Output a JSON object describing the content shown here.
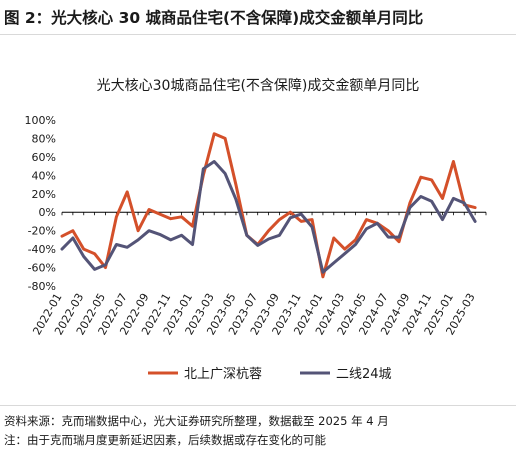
{
  "figure_title": "图 2：光大核心 30 城商品住宅(不含保障)成交金额单月同比",
  "footer": {
    "source": "资料来源：克而瑞数据中心，光大证券研究所整理，数据截至 2025 年 4 月",
    "note": "注：由于克而瑞月度更新延迟因素，后续数据或存在变化的可能"
  },
  "colors": {
    "series1": "#d4502a",
    "series2": "#545477",
    "zero_axis": "#000000"
  },
  "chart_data": {
    "type": "line",
    "title": "光大核心30城商品住宅(不含保障)成交金额单月同比",
    "xlabel": "",
    "ylabel": "",
    "ylim": [
      -80,
      100
    ],
    "y_ticks": [
      100,
      80,
      60,
      40,
      20,
      0,
      -20,
      -40,
      -60,
      -80
    ],
    "y_tick_labels": [
      "100%",
      "80%",
      "60%",
      "40%",
      "20%",
      "0%",
      "-20%",
      "-40%",
      "-60%",
      "-80%"
    ],
    "grid": false,
    "legend_position": "bottom",
    "x_tick_labels": [
      "2022-01",
      "2022-03",
      "2022-05",
      "2022-07",
      "2022-09",
      "2022-11",
      "2023-01",
      "2023-03",
      "2023-05",
      "2023-07",
      "2023-09",
      "2023-11",
      "2024-01",
      "2024-03",
      "2024-05",
      "2024-07",
      "2024-09",
      "2024-11",
      "2025-01",
      "2025-03"
    ],
    "x": [
      "2022-01",
      "2022-02",
      "2022-03",
      "2022-04",
      "2022-05",
      "2022-06",
      "2022-07",
      "2022-08",
      "2022-09",
      "2022-10",
      "2022-11",
      "2022-12",
      "2023-01",
      "2023-02",
      "2023-03",
      "2023-04",
      "2023-05",
      "2023-06",
      "2023-07",
      "2023-08",
      "2023-09",
      "2023-10",
      "2023-11",
      "2023-12",
      "2024-01",
      "2024-02",
      "2024-03",
      "2024-04",
      "2024-05",
      "2024-06",
      "2024-07",
      "2024-08",
      "2024-09",
      "2024-10",
      "2024-11",
      "2024-12",
      "2025-01",
      "2025-02",
      "2025-03",
      "2025-04"
    ],
    "series": [
      {
        "name": "北上广深杭蓉",
        "values": [
          -26,
          -20,
          -40,
          -45,
          -60,
          -5,
          22,
          -20,
          3,
          -2,
          -7,
          -5,
          -15,
          40,
          85,
          80,
          30,
          -25,
          -35,
          -20,
          -8,
          0,
          -10,
          -8,
          -70,
          -28,
          -40,
          -30,
          -8,
          -12,
          -20,
          -32,
          10,
          38,
          35,
          15,
          55,
          8,
          5,
          null
        ]
      },
      {
        "name": "二线24城",
        "values": [
          -40,
          -28,
          -48,
          -62,
          -57,
          -35,
          -38,
          -30,
          -20,
          -24,
          -30,
          -25,
          -35,
          47,
          55,
          42,
          14,
          -25,
          -36,
          -29,
          -25,
          -6,
          -2,
          -16,
          -65,
          -55,
          -45,
          -35,
          -18,
          -12,
          -27,
          -27,
          5,
          17,
          12,
          -8,
          15,
          10,
          -10,
          null
        ]
      }
    ]
  }
}
